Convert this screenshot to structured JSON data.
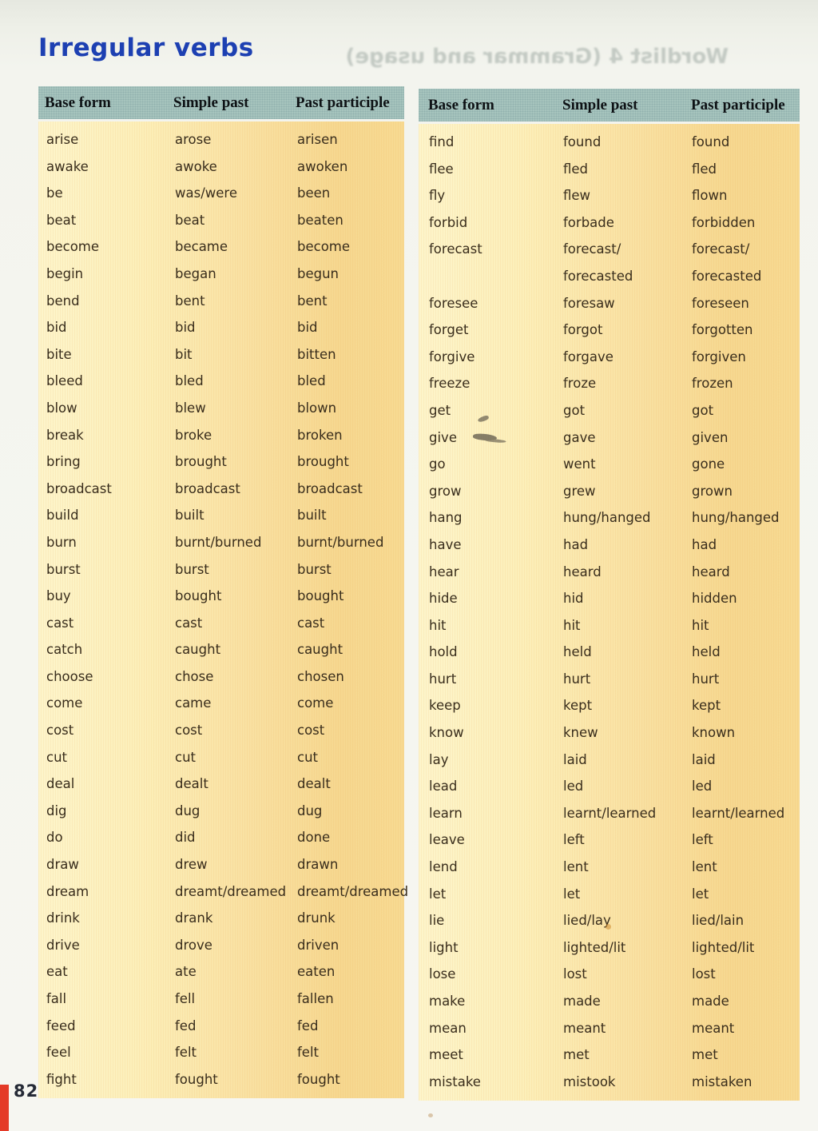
{
  "title": "Irregular verbs",
  "page_number": "82",
  "showthrough": "Wordlist 4 (Grammar and usage)",
  "columns": [
    "Base form",
    "Simple past",
    "Past participle"
  ],
  "left_rows": [
    [
      "arise",
      "arose",
      "arisen"
    ],
    [
      "awake",
      "awoke",
      "awoken"
    ],
    [
      "be",
      "was/were",
      "been"
    ],
    [
      "beat",
      "beat",
      "beaten"
    ],
    [
      "become",
      "became",
      "become"
    ],
    [
      "begin",
      "began",
      "begun"
    ],
    [
      "bend",
      "bent",
      "bent"
    ],
    [
      "bid",
      "bid",
      "bid"
    ],
    [
      "bite",
      "bit",
      "bitten"
    ],
    [
      "bleed",
      "bled",
      "bled"
    ],
    [
      "blow",
      "blew",
      "blown"
    ],
    [
      "break",
      "broke",
      "broken"
    ],
    [
      "bring",
      "brought",
      "brought"
    ],
    [
      "broadcast",
      "broadcast",
      "broadcast"
    ],
    [
      "build",
      "built",
      "built"
    ],
    [
      "burn",
      "burnt/burned",
      "burnt/burned"
    ],
    [
      "burst",
      "burst",
      "burst"
    ],
    [
      "buy",
      "bought",
      "bought"
    ],
    [
      "cast",
      "cast",
      "cast"
    ],
    [
      "catch",
      "caught",
      "caught"
    ],
    [
      "choose",
      "chose",
      "chosen"
    ],
    [
      "come",
      "came",
      "come"
    ],
    [
      "cost",
      "cost",
      "cost"
    ],
    [
      "cut",
      "cut",
      "cut"
    ],
    [
      "deal",
      "dealt",
      "dealt"
    ],
    [
      "dig",
      "dug",
      "dug"
    ],
    [
      "do",
      "did",
      "done"
    ],
    [
      "draw",
      "drew",
      "drawn"
    ],
    [
      "dream",
      "dreamt/dreamed",
      "dreamt/dreamed"
    ],
    [
      "drink",
      "drank",
      "drunk"
    ],
    [
      "drive",
      "drove",
      "driven"
    ],
    [
      "eat",
      "ate",
      "eaten"
    ],
    [
      "fall",
      "fell",
      "fallen"
    ],
    [
      "feed",
      "fed",
      "fed"
    ],
    [
      "feel",
      "felt",
      "felt"
    ],
    [
      "fight",
      "fought",
      "fought"
    ]
  ],
  "right_rows": [
    [
      "find",
      "found",
      "found"
    ],
    [
      "flee",
      "fled",
      "fled"
    ],
    [
      "fly",
      "flew",
      "flown"
    ],
    [
      "forbid",
      "forbade",
      "forbidden"
    ],
    [
      "forecast",
      "forecast/\nforecasted",
      "forecast/\nforecasted"
    ],
    [
      "foresee",
      "foresaw",
      "foreseen"
    ],
    [
      "forget",
      "forgot",
      "forgotten"
    ],
    [
      "forgive",
      "forgave",
      "forgiven"
    ],
    [
      "freeze",
      "froze",
      "frozen"
    ],
    [
      "get",
      "got",
      "got"
    ],
    [
      "give",
      "gave",
      "given"
    ],
    [
      "go",
      "went",
      "gone"
    ],
    [
      "grow",
      "grew",
      "grown"
    ],
    [
      "hang",
      "hung/hanged",
      "hung/hanged"
    ],
    [
      "have",
      "had",
      "had"
    ],
    [
      "hear",
      "heard",
      "heard"
    ],
    [
      "hide",
      "hid",
      "hidden"
    ],
    [
      "hit",
      "hit",
      "hit"
    ],
    [
      "hold",
      "held",
      "held"
    ],
    [
      "hurt",
      "hurt",
      "hurt"
    ],
    [
      "keep",
      "kept",
      "kept"
    ],
    [
      "know",
      "knew",
      "known"
    ],
    [
      "lay",
      "laid",
      "laid"
    ],
    [
      "lead",
      "led",
      "led"
    ],
    [
      "learn",
      "learnt/learned",
      "learnt/learned"
    ],
    [
      "leave",
      "left",
      "left"
    ],
    [
      "lend",
      "lent",
      "lent"
    ],
    [
      "let",
      "let",
      "let"
    ],
    [
      "lie",
      "lied/lay",
      "lied/lain"
    ],
    [
      "light",
      "lighted/lit",
      "lighted/lit"
    ],
    [
      "lose",
      "lost",
      "lost"
    ],
    [
      "make",
      "made",
      "made"
    ],
    [
      "mean",
      "meant",
      "meant"
    ],
    [
      "meet",
      "met",
      "met"
    ],
    [
      "mistake",
      "mistook",
      "mistaken"
    ]
  ],
  "colors": {
    "title_blue": "#1d40b2",
    "header_teal": "#a6c4bd",
    "body_yellow_light": "#fdf5cb",
    "body_yellow_dark": "#f6d890",
    "page_tab_red": "#e43a28",
    "verb_text": "#392d1c"
  }
}
